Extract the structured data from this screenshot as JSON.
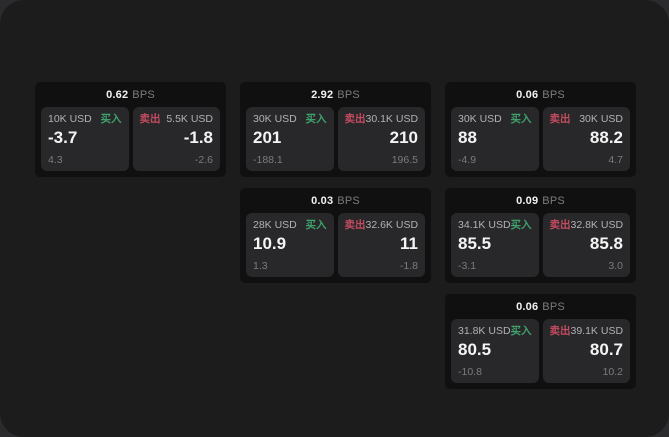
{
  "labels": {
    "buy": "买入",
    "sell": "卖出",
    "bps_unit": "BPS"
  },
  "colors": {
    "buy_green": "#3fa06c",
    "sell_red": "#c34b5f",
    "window_bg": "#1c1c1d",
    "card_bg": "#101011",
    "panel_bg": "#28282a"
  },
  "cards": [
    {
      "bps": "0.62",
      "col": 1,
      "row": 1,
      "buy": {
        "notional": "10K USD",
        "price": "-3.7",
        "delta": "4.3"
      },
      "sell": {
        "notional": "5.5K USD",
        "price": "-1.8",
        "delta": "-2.6"
      }
    },
    {
      "bps": "2.92",
      "col": 2,
      "row": 1,
      "buy": {
        "notional": "30K USD",
        "price": "201",
        "delta": "-188.1"
      },
      "sell": {
        "notional": "30.1K USD",
        "price": "210",
        "delta": "196.5"
      }
    },
    {
      "bps": "0.06",
      "col": 3,
      "row": 1,
      "buy": {
        "notional": "30K USD",
        "price": "88",
        "delta": "-4.9"
      },
      "sell": {
        "notional": "30K USD",
        "price": "88.2",
        "delta": "4.7"
      }
    },
    {
      "bps": "0.03",
      "col": 2,
      "row": 2,
      "buy": {
        "notional": "28K USD",
        "price": "10.9",
        "delta": "1.3"
      },
      "sell": {
        "notional": "32.6K USD",
        "price": "11",
        "delta": "-1.8"
      }
    },
    {
      "bps": "0.09",
      "col": 3,
      "row": 2,
      "buy": {
        "notional": "34.1K USD",
        "price": "85.5",
        "delta": "-3.1"
      },
      "sell": {
        "notional": "32.8K USD",
        "price": "85.8",
        "delta": "3.0"
      }
    },
    {
      "bps": "0.06",
      "col": 3,
      "row": 3,
      "buy": {
        "notional": "31.8K USD",
        "price": "80.5",
        "delta": "-10.8"
      },
      "sell": {
        "notional": "39.1K USD",
        "price": "80.7",
        "delta": "10.2"
      }
    }
  ]
}
